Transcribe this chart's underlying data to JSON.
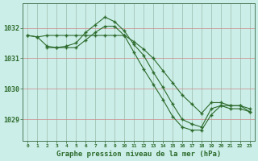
{
  "xlabel": "Graphe pression niveau de la mer (hPa)",
  "bg_color": "#cceee8",
  "line_color": "#2d6b2d",
  "ylim": [
    1028.3,
    1032.8
  ],
  "xlim": [
    -0.5,
    23.5
  ],
  "yticks": [
    1029,
    1030,
    1031,
    1032
  ],
  "xticks": [
    0,
    1,
    2,
    3,
    4,
    5,
    6,
    7,
    8,
    9,
    10,
    11,
    12,
    13,
    14,
    15,
    16,
    17,
    18,
    19,
    20,
    21,
    22,
    23
  ],
  "line1_x": [
    0,
    1,
    2,
    3,
    4,
    5,
    6,
    7,
    8,
    9,
    10,
    11,
    12,
    13,
    14,
    15,
    16,
    17,
    18,
    19,
    20,
    21,
    22,
    23
  ],
  "line1_y": [
    1031.75,
    1031.7,
    1031.75,
    1031.75,
    1031.75,
    1031.75,
    1031.75,
    1031.75,
    1031.75,
    1031.75,
    1031.75,
    1031.55,
    1031.3,
    1031.0,
    1030.6,
    1030.2,
    1029.8,
    1029.5,
    1029.2,
    1029.55,
    1029.55,
    1029.45,
    1029.45,
    1029.35
  ],
  "line2_x": [
    0,
    1,
    2,
    3,
    4,
    5,
    6,
    7,
    8,
    9,
    10,
    11,
    12,
    13,
    14,
    15,
    16,
    17,
    18,
    19,
    20,
    21,
    22,
    23
  ],
  "line2_y": [
    1031.75,
    1031.7,
    1031.4,
    1031.35,
    1031.4,
    1031.5,
    1031.85,
    1032.1,
    1032.35,
    1032.2,
    1031.9,
    1031.45,
    1031.1,
    1030.55,
    1030.05,
    1029.5,
    1029.0,
    1028.85,
    1028.75,
    1029.35,
    1029.45,
    1029.35,
    1029.35,
    1029.25
  ],
  "line3_x": [
    2,
    3,
    4,
    5,
    6,
    7,
    8,
    9,
    10,
    11,
    12,
    13,
    14,
    15,
    16,
    17,
    18,
    19,
    20,
    21,
    22,
    23
  ],
  "line3_y": [
    1031.35,
    1031.35,
    1031.35,
    1031.35,
    1031.6,
    1031.85,
    1032.05,
    1032.05,
    1031.75,
    1031.2,
    1030.65,
    1030.15,
    1029.65,
    1029.1,
    1028.75,
    1028.65,
    1028.65,
    1029.15,
    1029.45,
    1029.45,
    1029.45,
    1029.25
  ]
}
